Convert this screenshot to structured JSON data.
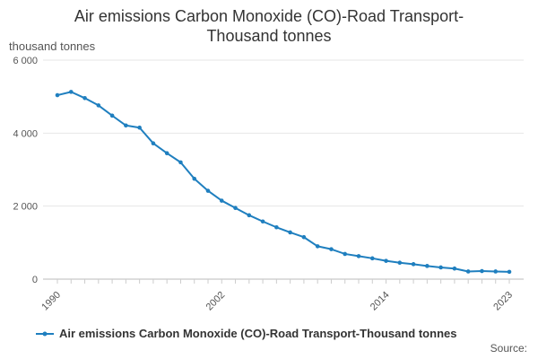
{
  "chart_data": {
    "type": "line",
    "title_line1": "Air emissions Carbon Monoxide (CO)-Road Transport-",
    "title_line2": "Thousand tonnes",
    "unit_label": "thousand tonnes",
    "source_label": "Source:",
    "ylim": [
      0,
      6000
    ],
    "yticks": [
      {
        "value": 0,
        "label": "0"
      },
      {
        "value": 2000,
        "label": "2 000"
      },
      {
        "value": 4000,
        "label": "4 000"
      },
      {
        "value": 6000,
        "label": "6 000"
      }
    ],
    "xticks": [
      1990,
      2002,
      2014,
      2023
    ],
    "grid": true,
    "color": "#1F7FBF",
    "series": [
      {
        "name": "Air emissions Carbon Monoxide (CO)-Road Transport-Thousand tonnes",
        "x": [
          1990,
          1991,
          1992,
          1993,
          1994,
          1995,
          1996,
          1997,
          1998,
          1999,
          2000,
          2001,
          2002,
          2003,
          2004,
          2005,
          2006,
          2007,
          2008,
          2009,
          2010,
          2011,
          2012,
          2013,
          2014,
          2015,
          2016,
          2017,
          2018,
          2019,
          2020,
          2021,
          2022,
          2023
        ],
        "values": [
          5040,
          5130,
          4960,
          4760,
          4480,
          4210,
          4150,
          3720,
          3450,
          3200,
          2750,
          2420,
          2150,
          1950,
          1750,
          1580,
          1420,
          1280,
          1150,
          900,
          820,
          690,
          630,
          570,
          500,
          450,
          410,
          360,
          320,
          290,
          210,
          220,
          210,
          200
        ]
      }
    ]
  }
}
